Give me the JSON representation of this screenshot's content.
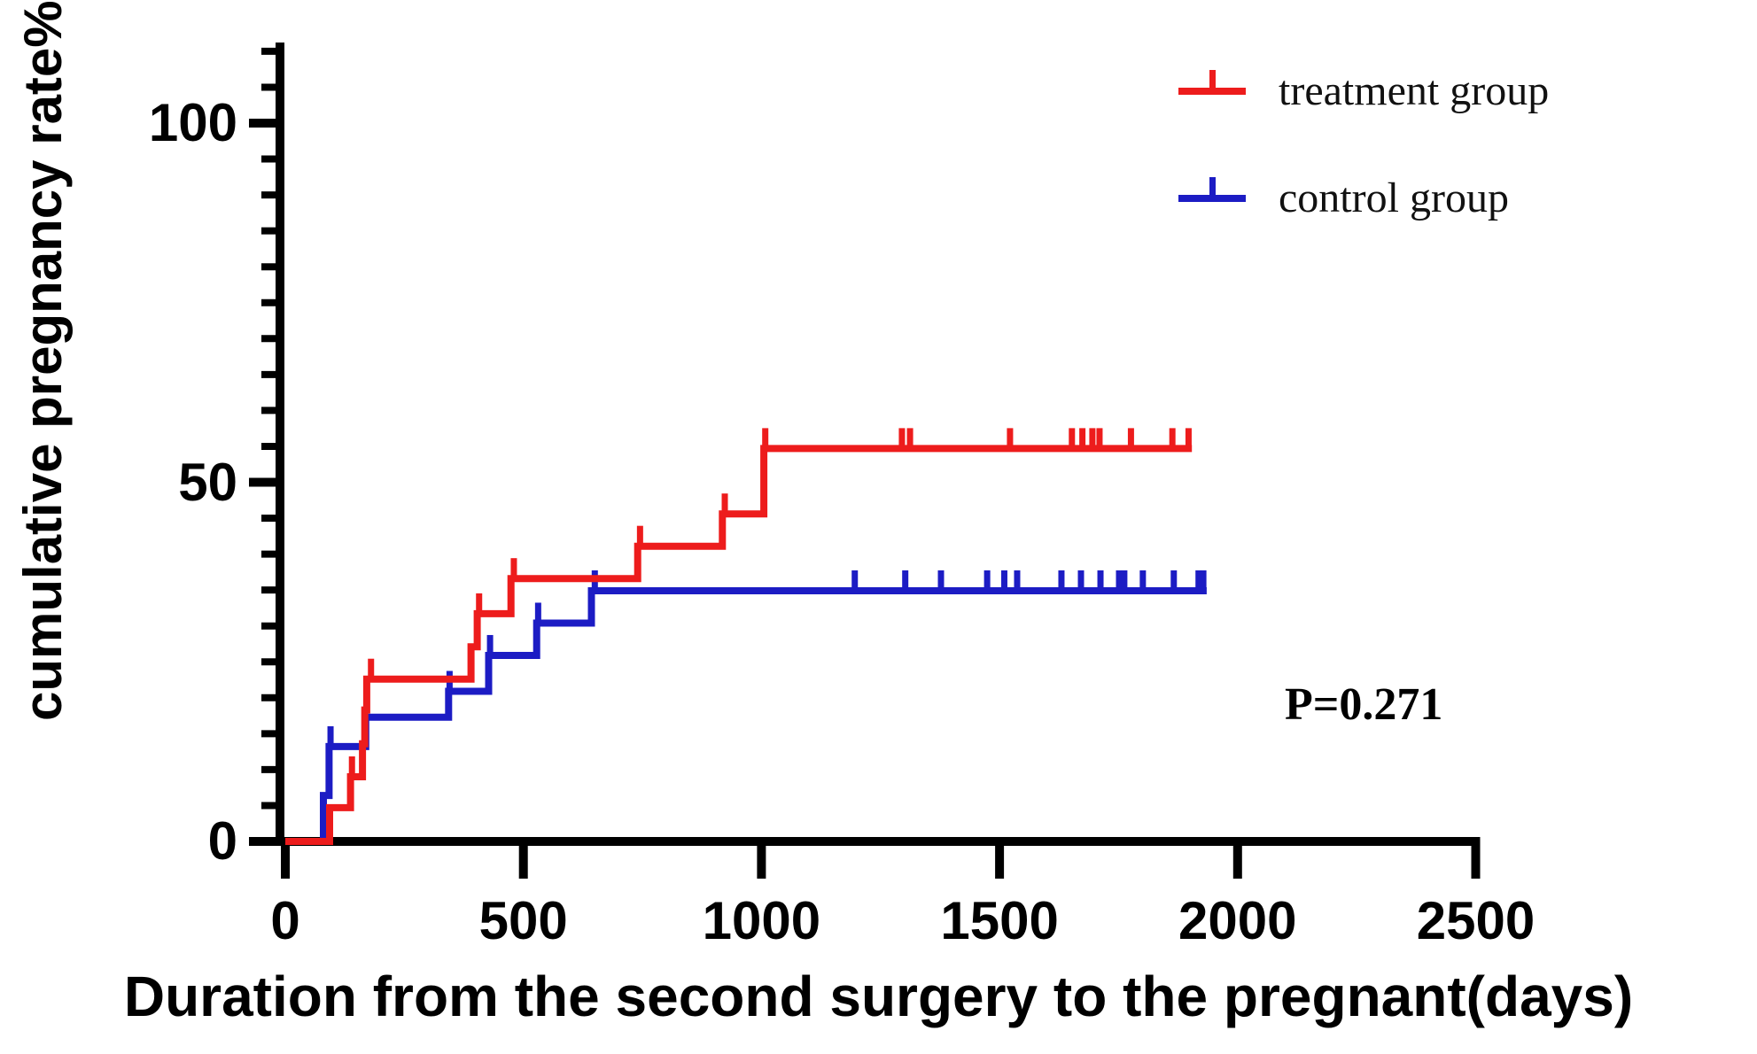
{
  "chart_data": {
    "type": "line",
    "subtype": "kaplan-meier-step",
    "title": "",
    "xlabel": "Duration from the second surgery to the pregnant(days)",
    "ylabel": "cumulative pregnancy rate%",
    "xlim": [
      0,
      2500
    ],
    "ylim": [
      0,
      110
    ],
    "x_ticks": [
      0,
      500,
      1000,
      1500,
      2000,
      2500
    ],
    "y_ticks": [
      0,
      50,
      100
    ],
    "y_minor_tick_step": 5,
    "grid": false,
    "legend_position": "top-right",
    "axis_color": "#000000",
    "annotations": [
      {
        "text": "P=0.271"
      }
    ],
    "series": [
      {
        "name": "treatment group",
        "color": "#ed1c1c",
        "points": [
          [
            0,
            0
          ],
          [
            93,
            0
          ],
          [
            93,
            4.7
          ],
          [
            137,
            4.7
          ],
          [
            137,
            9.0
          ],
          [
            162,
            9.0
          ],
          [
            162,
            13.6
          ],
          [
            167,
            13.6
          ],
          [
            167,
            18.3
          ],
          [
            171,
            18.3
          ],
          [
            171,
            22.6
          ],
          [
            390,
            22.6
          ],
          [
            390,
            27.1
          ],
          [
            403,
            27.1
          ],
          [
            403,
            31.7
          ],
          [
            474,
            31.7
          ],
          [
            474,
            36.6
          ],
          [
            740,
            36.6
          ],
          [
            740,
            41.1
          ],
          [
            918,
            41.1
          ],
          [
            918,
            45.6
          ],
          [
            1005,
            45.6
          ],
          [
            1005,
            54.7
          ],
          [
            1904,
            54.7
          ]
        ],
        "censor_marks": [
          [
            140,
            9.0
          ],
          [
            180,
            22.6
          ],
          [
            407,
            31.7
          ],
          [
            480,
            36.6
          ],
          [
            745,
            41.1
          ],
          [
            923,
            45.6
          ],
          [
            1008,
            54.7
          ],
          [
            1295,
            54.7
          ],
          [
            1312,
            54.7
          ],
          [
            1522,
            54.7
          ],
          [
            1652,
            54.7
          ],
          [
            1674,
            54.7
          ],
          [
            1695,
            54.7
          ],
          [
            1710,
            54.7
          ],
          [
            1776,
            54.7
          ],
          [
            1863,
            54.7
          ],
          [
            1897,
            54.7
          ]
        ]
      },
      {
        "name": "control group",
        "color": "#1c1cc4",
        "points": [
          [
            0,
            0
          ],
          [
            80,
            0
          ],
          [
            80,
            6.4
          ],
          [
            92,
            6.4
          ],
          [
            92,
            13.2
          ],
          [
            169,
            13.2
          ],
          [
            169,
            17.3
          ],
          [
            343,
            17.3
          ],
          [
            343,
            20.9
          ],
          [
            427,
            20.9
          ],
          [
            427,
            25.9
          ],
          [
            528,
            25.9
          ],
          [
            528,
            30.4
          ],
          [
            643,
            30.4
          ],
          [
            643,
            34.9
          ],
          [
            1935,
            34.9
          ]
        ],
        "censor_marks": [
          [
            95,
            13.2
          ],
          [
            345,
            20.9
          ],
          [
            430,
            25.9
          ],
          [
            531,
            30.4
          ],
          [
            650,
            34.9
          ],
          [
            1196,
            34.9
          ],
          [
            1302,
            34.9
          ],
          [
            1377,
            34.9
          ],
          [
            1474,
            34.9
          ],
          [
            1510,
            34.9
          ],
          [
            1537,
            34.9
          ],
          [
            1630,
            34.9
          ],
          [
            1671,
            34.9
          ],
          [
            1712,
            34.9
          ],
          [
            1751,
            34.9
          ],
          [
            1762,
            34.9
          ],
          [
            1801,
            34.9
          ],
          [
            1866,
            34.9
          ],
          [
            1918,
            34.9
          ],
          [
            1928,
            34.9
          ]
        ]
      }
    ]
  }
}
